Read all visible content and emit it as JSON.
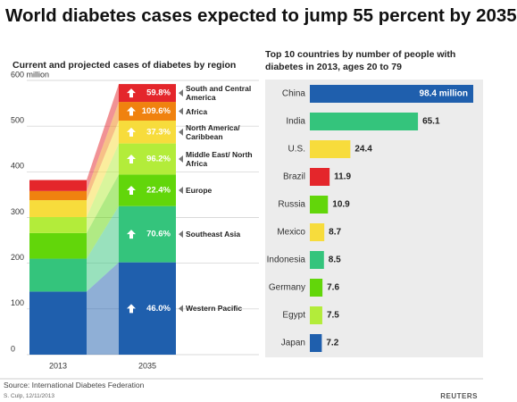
{
  "header": {
    "title": "World diabetes cases expected to jump 55 percent by 2035"
  },
  "chart_data": [
    {
      "type": "stacked_bar",
      "title": "Current and projected cases of diabetes by region",
      "categories": [
        "2013",
        "2035"
      ],
      "ylim": [
        0,
        600
      ],
      "yticks": [
        0,
        100,
        200,
        300,
        400,
        500,
        {
          "value": 600,
          "label": "600 million"
        }
      ],
      "grid": true,
      "series": [
        {
          "name": "Western Pacific",
          "color": "#1f5fad",
          "values": [
            138,
            202
          ],
          "change": "46.0%"
        },
        {
          "name": "Southeast Asia",
          "color": "#34c47c",
          "values": [
            72,
            123
          ],
          "change": "70.6%"
        },
        {
          "name": "Europe",
          "color": "#62d60a",
          "values": [
            56,
            69
          ],
          "change": "22.4%"
        },
        {
          "name": "Middle East/ North Africa",
          "color": "#b3ec3a",
          "values": [
            35,
            68
          ],
          "change": "96.2%"
        },
        {
          "name": "North America/ Caribbean",
          "color": "#f7dc3c",
          "values": [
            37,
            50
          ],
          "change": "37.3%"
        },
        {
          "name": "Africa",
          "color": "#f0820f",
          "values": [
            20,
            41
          ],
          "change": "109.6%"
        },
        {
          "name": "South and Central America",
          "color": "#e4262b",
          "values": [
            24,
            39
          ],
          "change": "59.8%"
        }
      ]
    },
    {
      "type": "hbar",
      "title": "Top 10 countries by number of people with diabetes in 2013, ages 20 to 79",
      "categories": [
        "China",
        "India",
        "U.S.",
        "Brazil",
        "Russia",
        "Mexico",
        "Indonesia",
        "Germany",
        "Egypt",
        "Japan"
      ],
      "values": [
        98.4,
        65.1,
        24.4,
        11.9,
        10.9,
        8.7,
        8.5,
        7.6,
        7.5,
        7.2
      ],
      "value_labels": [
        "98.4 million",
        "65.1",
        "24.4",
        "11.9",
        "10.9",
        "8.7",
        "8.5",
        "7.6",
        "7.5",
        "7.2"
      ],
      "colors": [
        "#1f5fad",
        "#34c47c",
        "#f7dc3c",
        "#e4262b",
        "#62d60a",
        "#f7dc3c",
        "#34c47c",
        "#62d60a",
        "#b3ec3a",
        "#1f5fad"
      ]
    }
  ],
  "footer": {
    "source": "Source: International Diabetes Federation",
    "credit": "S. Culp, 12/11/2013",
    "brand": "REUTERS"
  }
}
